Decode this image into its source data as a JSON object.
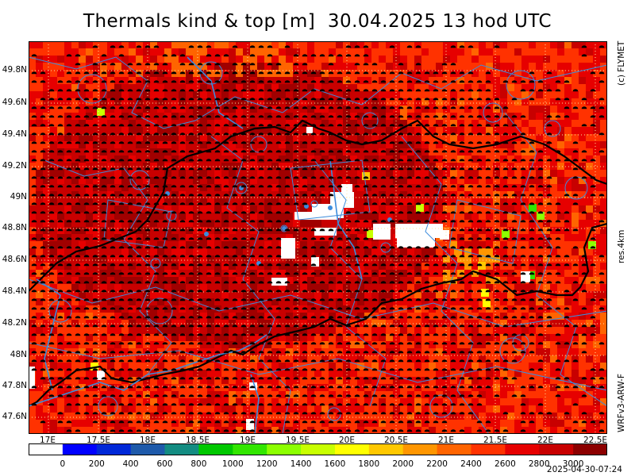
{
  "title": "Thermals kind & top [m]  30.04.2025 13 hod UTC",
  "y_axis_labels": [
    "49.8N",
    "49.6N",
    "49.4N",
    "49.2N",
    "49N",
    "48.8N",
    "48.6N",
    "48.4N",
    "48.2N",
    "48N",
    "47.8N",
    "47.6N"
  ],
  "x_axis_labels": [
    "17E",
    "17.5E",
    "18E",
    "18.5E",
    "19E",
    "19.5E",
    "20E",
    "20.5E",
    "21E",
    "21.5E",
    "22E",
    "22.5E"
  ],
  "side_labels": {
    "copyright": "(c) FLYMET",
    "resolution": "res.4km",
    "model": "WRFv3-ARW-F"
  },
  "colorbar": {
    "labels": [
      "0",
      "200",
      "400",
      "600",
      "800",
      "1000",
      "1200",
      "1400",
      "1600",
      "1800",
      "2000",
      "2200",
      "2400",
      "2600",
      "2800",
      "3000"
    ],
    "colors": [
      "#ffffff",
      "#0000ff",
      "#0028d8",
      "#1e5aaa",
      "#138c82",
      "#00c800",
      "#32e600",
      "#8cff00",
      "#c8ff00",
      "#ffff00",
      "#ffc800",
      "#ff9600",
      "#ff6400",
      "#ff3200",
      "#e60000",
      "#c80000",
      "#8c0000"
    ]
  },
  "timestamp": "2025-04-30-07:24",
  "map": {
    "base_color": "#e61a00",
    "field_colors": [
      "#ff3200",
      "#e60000",
      "#c80000",
      "#a00000",
      "#ff6400",
      "#ff9600"
    ],
    "border_color": "#000000",
    "boundary_color": "#3c8cdc",
    "grid_color": "#ffe6a0"
  }
}
